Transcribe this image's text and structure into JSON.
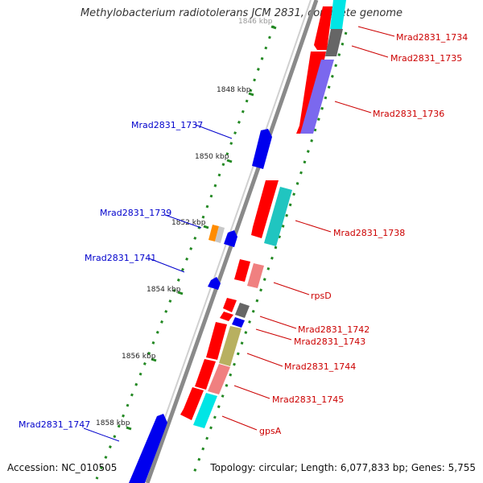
{
  "title": "Methylobacterium radiotolerans JCM 2831, complete genome",
  "footer": {
    "accession": "Accession: NC_010505",
    "topology": "Topology: circular; Length: 6,077,833 bp; Genes: 5,755"
  },
  "scale": {
    "ticks": [
      "1846 kbp",
      "1848 kbp",
      "1850 kbp",
      "1852 kbp",
      "1854 kbp",
      "1856 kbp",
      "1858 kbp"
    ]
  },
  "colors": {
    "backbone": "#8a8a8a",
    "forward_label": "#cc0000",
    "reverse_label": "#0000cc",
    "tick": "#228822",
    "red": "#ff0000",
    "blue": "#0000ee",
    "cyan": "#00e5e5",
    "gray": "#666666",
    "lavender": "#7b68ee",
    "teal": "#20c5c0",
    "pink": "#f08080",
    "olive": "#b8b060",
    "orange": "#ff8c00",
    "lightgray": "#c8c8c8"
  },
  "genes": [
    {
      "label": "Mrad2831_1734",
      "strand": "forward"
    },
    {
      "label": "Mrad2831_1735",
      "strand": "forward"
    },
    {
      "label": "Mrad2831_1736",
      "strand": "forward"
    },
    {
      "label": "Mrad2831_1737",
      "strand": "reverse"
    },
    {
      "label": "Mrad2831_1738",
      "strand": "forward"
    },
    {
      "label": "Mrad2831_1739",
      "strand": "reverse"
    },
    {
      "label": "Mrad2831_1741",
      "strand": "reverse"
    },
    {
      "label": "rpsD",
      "strand": "forward"
    },
    {
      "label": "Mrad2831_1742",
      "strand": "forward"
    },
    {
      "label": "Mrad2831_1743",
      "strand": "forward"
    },
    {
      "label": "Mrad2831_1744",
      "strand": "forward"
    },
    {
      "label": "Mrad2831_1745",
      "strand": "forward"
    },
    {
      "label": "gpsA",
      "strand": "forward"
    },
    {
      "label": "Mrad2831_1747",
      "strand": "reverse"
    }
  ]
}
